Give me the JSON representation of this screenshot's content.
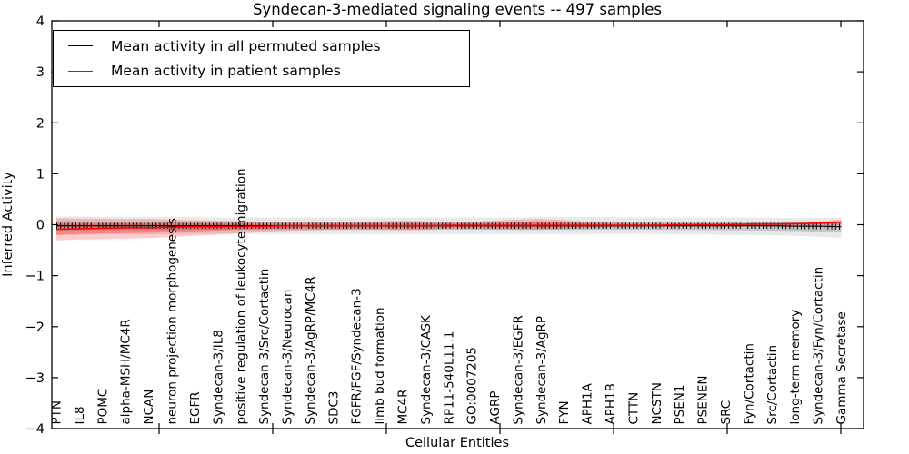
{
  "title": "Syndecan-3-mediated signaling events -- 497 samples",
  "legend": {
    "items": [
      {
        "label": "Mean activity in all permuted samples",
        "color": "#000000"
      },
      {
        "label": "Mean activity in patient samples",
        "color": "#ff0000"
      }
    ]
  },
  "chart_data": {
    "type": "line",
    "title": "Syndecan-3-mediated signaling events -- 497 samples",
    "xlabel": "Cellular Entities",
    "ylabel": "Inferred Activity",
    "ylim": [
      -4,
      4
    ],
    "yticks": [
      4,
      3,
      2,
      1,
      0,
      -1,
      -2,
      -3,
      -4
    ],
    "grid": false,
    "legend_position": "upper left",
    "categories": [
      "PTN",
      "IL8",
      "POMC",
      "alpha-MSH/MC4R",
      "NCAN",
      "neuron projection morphogenesis",
      "EGFR",
      "Syndecan-3/IL8",
      "positive regulation of leukocyte migration",
      "Syndecan-3/Src/Cortactin",
      "Syndecan-3/Neurocan",
      "Syndecan-3/AgRP/MC4R",
      "SDC3",
      "FGFR/FGF/Syndecan-3",
      "limb bud formation",
      "MC4R",
      "Syndecan-3/CASK",
      "RP11-540L11.1",
      "GO:0007205",
      "AGRP",
      "Syndecan-3/EGFR",
      "Syndecan-3/AgRP",
      "FYN",
      "APH1A",
      "APH1B",
      "CTTN",
      "NCSTN",
      "PSEN1",
      "PSENEN",
      "SRC",
      "Fyn/Cortactin",
      "Src/Cortactin",
      "long-term memory",
      "Syndecan-3/Fyn/Cortactin",
      "Gamma Secretase"
    ],
    "series": [
      {
        "name": "Mean activity in all permuted samples",
        "color": "#000000",
        "line_width": 1.2,
        "band_color": "#000000",
        "band_alpha": 0.09,
        "values": [
          -0.02,
          -0.02,
          -0.02,
          -0.02,
          -0.02,
          -0.02,
          -0.02,
          -0.02,
          -0.02,
          -0.02,
          -0.02,
          -0.02,
          -0.02,
          -0.02,
          -0.02,
          -0.02,
          -0.02,
          -0.02,
          -0.02,
          -0.02,
          -0.02,
          -0.02,
          -0.02,
          -0.02,
          -0.02,
          -0.02,
          -0.02,
          -0.02,
          -0.02,
          -0.02,
          -0.02,
          -0.02,
          -0.03,
          -0.03,
          -0.04
        ],
        "band_upper": [
          0.16,
          0.16,
          0.15,
          0.15,
          0.15,
          0.15,
          0.15,
          0.14,
          0.14,
          0.14,
          0.14,
          0.14,
          0.14,
          0.14,
          0.14,
          0.14,
          0.14,
          0.14,
          0.14,
          0.14,
          0.14,
          0.15,
          0.15,
          0.15,
          0.15,
          0.14,
          0.14,
          0.14,
          0.14,
          0.14,
          0.14,
          0.14,
          0.13,
          0.13,
          0.14
        ],
        "band_lower": [
          -0.2,
          -0.2,
          -0.19,
          -0.19,
          -0.19,
          -0.19,
          -0.18,
          -0.18,
          -0.18,
          -0.18,
          -0.18,
          -0.18,
          -0.18,
          -0.18,
          -0.18,
          -0.18,
          -0.18,
          -0.18,
          -0.18,
          -0.18,
          -0.18,
          -0.18,
          -0.18,
          -0.18,
          -0.18,
          -0.18,
          -0.18,
          -0.19,
          -0.19,
          -0.2,
          -0.2,
          -0.21,
          -0.22,
          -0.24,
          -0.26
        ]
      },
      {
        "name": "Mean activity in patient samples",
        "color": "#ff0000",
        "line_width": 1.5,
        "band_color": "#ff0000",
        "band_alpha": 0.2,
        "values": [
          -0.09,
          -0.08,
          -0.07,
          -0.06,
          -0.06,
          -0.05,
          -0.04,
          -0.04,
          -0.03,
          -0.03,
          -0.02,
          -0.02,
          -0.02,
          -0.02,
          -0.02,
          -0.02,
          -0.02,
          -0.01,
          -0.01,
          -0.01,
          -0.01,
          -0.01,
          -0.01,
          -0.01,
          -0.01,
          -0.01,
          -0.01,
          0.0,
          0.0,
          0.0,
          0.01,
          0.01,
          0.02,
          0.03,
          0.05
        ],
        "band_upper": [
          0.13,
          0.12,
          0.12,
          0.11,
          0.11,
          0.1,
          0.09,
          0.08,
          0.07,
          0.06,
          0.05,
          0.05,
          0.05,
          0.06,
          0.07,
          0.08,
          0.07,
          0.05,
          0.06,
          0.08,
          0.1,
          0.11,
          0.09,
          0.06,
          0.04,
          0.03,
          0.03,
          0.03,
          0.03,
          0.03,
          0.03,
          0.04,
          0.05,
          0.06,
          0.1
        ],
        "band_lower": [
          -0.31,
          -0.29,
          -0.28,
          -0.27,
          -0.26,
          -0.24,
          -0.22,
          -0.19,
          -0.17,
          -0.14,
          -0.12,
          -0.11,
          -0.1,
          -0.1,
          -0.1,
          -0.11,
          -0.1,
          -0.08,
          -0.08,
          -0.09,
          -0.1,
          -0.1,
          -0.09,
          -0.07,
          -0.06,
          -0.05,
          -0.05,
          -0.04,
          -0.04,
          -0.04,
          -0.03,
          -0.03,
          -0.02,
          -0.02,
          -0.01
        ]
      }
    ]
  }
}
